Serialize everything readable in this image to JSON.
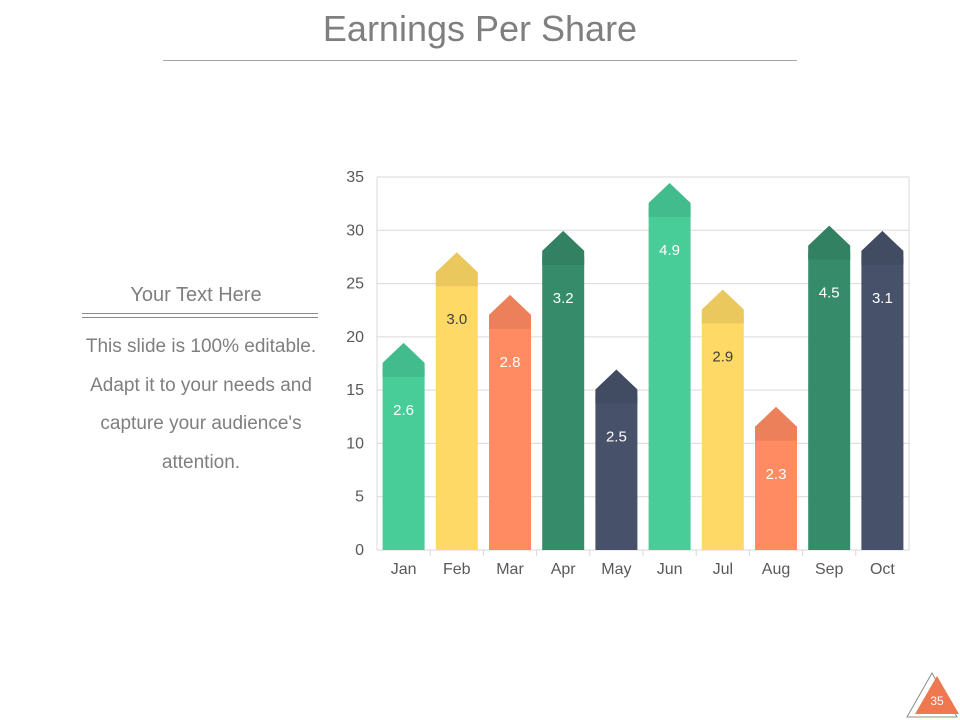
{
  "slide": {
    "title": "Earnings Per Share",
    "side_heading": "Your Text Here",
    "side_body": "This slide is 100% editable. Adapt it to your needs and capture your audience's attention.",
    "page_number": "35"
  },
  "colors": {
    "green_light": "#48cc98",
    "yellow": "#ffd966",
    "orange": "#ff8b62",
    "green_dark": "#368c6a",
    "navy": "#475169",
    "badge": "#f07850"
  },
  "chart_data": {
    "type": "bar",
    "categories": [
      "Jan",
      "Feb",
      "Mar",
      "Apr",
      "May",
      "Jun",
      "Jul",
      "Aug",
      "Sep",
      "Oct"
    ],
    "values": [
      17,
      25.5,
      21.5,
      27.5,
      14.5,
      32,
      22,
      11,
      28,
      27.5
    ],
    "data_labels": [
      "2.6",
      "3.0",
      "2.8",
      "3.2",
      "2.5",
      "4.9",
      "2.9",
      "2.3",
      "4.5",
      "3.1"
    ],
    "bar_colors": [
      "green_light",
      "yellow",
      "orange",
      "green_dark",
      "navy",
      "green_light",
      "yellow",
      "orange",
      "green_dark",
      "navy"
    ],
    "ylim": [
      0,
      35
    ],
    "yticks": [
      0,
      5,
      10,
      15,
      20,
      25,
      30,
      35
    ],
    "grid": true,
    "legend": "none"
  }
}
